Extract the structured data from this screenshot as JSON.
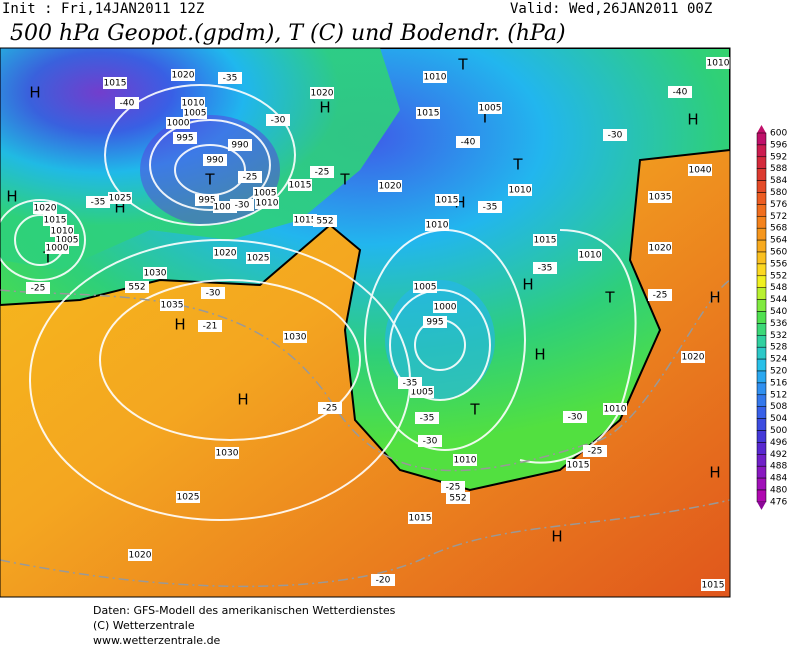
{
  "header": {
    "init": "Init : Fri,14JAN2011 12Z",
    "valid": "Valid: Wed,26JAN2011 00Z",
    "title": "500 hPa Geopot.(gpdm), T (C) und Bodendr. (hPa)"
  },
  "colorbar": {
    "levels": [
      600,
      596,
      592,
      588,
      584,
      580,
      576,
      572,
      568,
      564,
      560,
      556,
      552,
      548,
      544,
      540,
      536,
      532,
      528,
      524,
      520,
      516,
      512,
      508,
      504,
      500,
      496,
      492,
      488,
      484,
      480,
      476
    ]
  },
  "map": {
    "labels": [
      "H",
      "H",
      "H",
      "H",
      "H",
      "H",
      "H",
      "H",
      "H",
      "H",
      "H",
      "H",
      "H",
      "T",
      "T",
      "T",
      "T",
      "T",
      "T",
      "T",
      "T",
      "1015",
      "1020",
      "1010",
      "1005",
      "1000",
      "995",
      "990",
      "990",
      "995",
      "1000",
      "1005",
      "1010",
      "1015",
      "1020",
      "1025",
      "1025",
      "1020",
      "1015",
      "1010",
      "1005",
      "1000",
      "1030",
      "1035",
      "1030",
      "1030",
      "1025",
      "1020",
      "1015",
      "1010",
      "1015",
      "1010",
      "1005",
      "995",
      "1000",
      "1005",
      "1010",
      "1015",
      "1015",
      "1010",
      "1010",
      "1020",
      "1015",
      "1010",
      "1005",
      "1020",
      "1015",
      "1020",
      "1035",
      "1040",
      "1020",
      "1015",
      "1010",
      "-35",
      "-40",
      "-30",
      "-25",
      "-25",
      "-30",
      "-35",
      "-25",
      "-30",
      "-21",
      "-25",
      "-35",
      "-35",
      "-30",
      "-25",
      "-20",
      "-35",
      "-35",
      "-40",
      "-30",
      "-40",
      "-25",
      "-30",
      "-25",
      "552",
      "552",
      "552"
    ]
  },
  "footer": {
    "lines": [
      "Daten: GFS-Modell des amerikanischen Wetterdienstes",
      "(C) Wetterzentrale",
      "www.wetterzentrale.de"
    ]
  }
}
